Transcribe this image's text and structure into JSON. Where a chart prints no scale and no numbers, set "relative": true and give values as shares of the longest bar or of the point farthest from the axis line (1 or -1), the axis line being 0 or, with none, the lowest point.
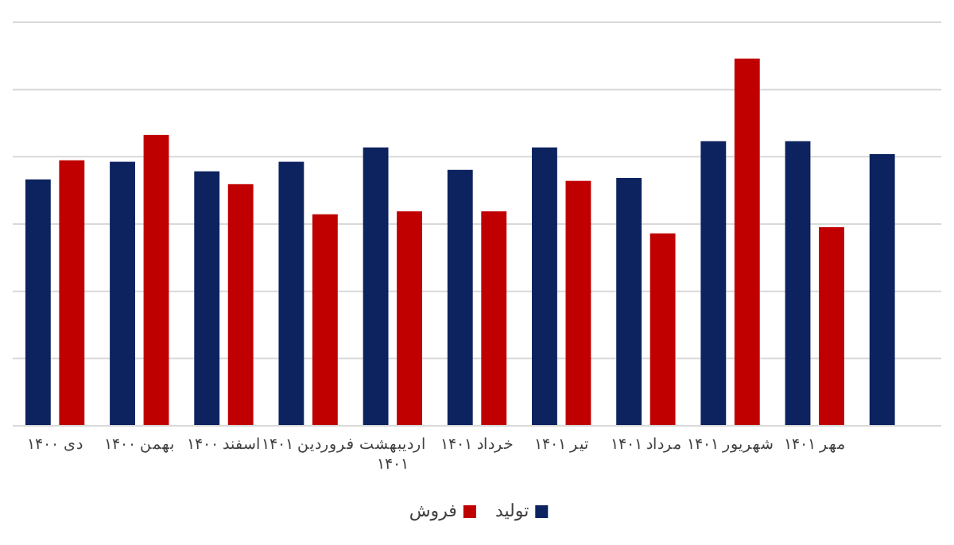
{
  "chart_data": {
    "type": "bar",
    "relative": true,
    "grid": "y",
    "legend": "bottom",
    "categories": [
      "دی ۱۴۰۰",
      "بهمن ۱۴۰۰",
      "اسفند ۱۴۰۰",
      "فروردین ۱۴۰۱",
      "اردیبهشت ۱۴۰۱",
      "خرداد ۱۴۰۱",
      "تیر ۱۴۰۱",
      "مرداد ۱۴۰۱",
      "شهریور ۱۴۰۱",
      "مهر ۱۴۰۱",
      null
    ],
    "series": [
      {
        "name": "تولید",
        "color": "#0d2360",
        "values": [
          0.671,
          0.719,
          0.693,
          0.719,
          0.758,
          0.697,
          0.758,
          0.675,
          0.775,
          0.775,
          0.74
        ]
      },
      {
        "name": "فروش",
        "color": "#c00000",
        "values": [
          0.723,
          0.792,
          0.658,
          0.576,
          0.584,
          0.584,
          0.667,
          0.524,
          1,
          0.541,
          null
        ]
      }
    ]
  }
}
